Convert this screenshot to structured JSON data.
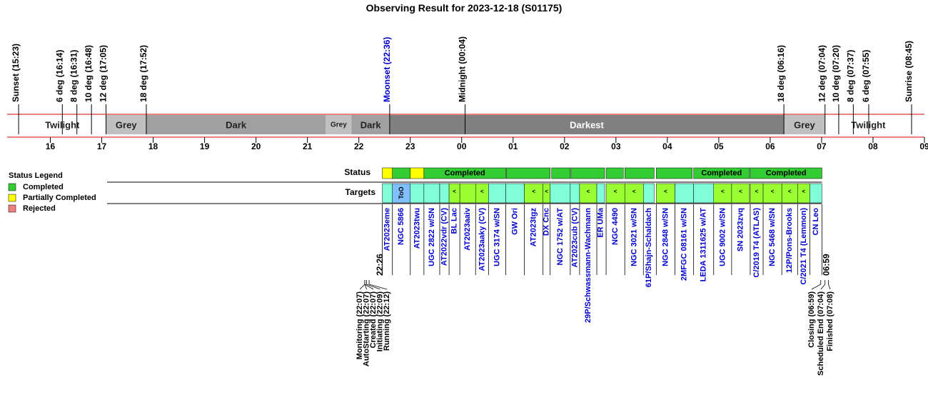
{
  "title": "Observing Result for 2023-12-18 (S01175)",
  "axis": {
    "lim": [
      15.16,
      33.0
    ],
    "ticks": [
      16,
      17,
      18,
      19,
      20,
      21,
      22,
      23,
      {
        "value": 24,
        "label": "00"
      },
      {
        "value": 25,
        "label": "01"
      },
      {
        "value": 26,
        "label": "02"
      },
      {
        "value": 27,
        "label": "03"
      },
      {
        "value": 28,
        "label": "04"
      },
      {
        "value": 29,
        "label": "05"
      },
      {
        "value": 30,
        "label": "06"
      },
      {
        "value": 31,
        "label": "07"
      },
      {
        "value": 32,
        "label": "08"
      },
      {
        "value": 33,
        "label": "09"
      }
    ]
  },
  "events": [
    {
      "label": "Sunset (15:23)"
    },
    {
      "label": "6 deg (16:14)"
    },
    {
      "label": "8 deg (16:31)"
    },
    {
      "label": "10 deg (16:48)"
    },
    {
      "label": "12 deg (17:05)"
    },
    {
      "label": "18 deg (17:52)"
    },
    {
      "label": "Moonset (22:36)",
      "color": "#0000cc"
    },
    {
      "label": "Midnight (00:04)"
    },
    {
      "label": "18 deg (06:16)"
    },
    {
      "label": "12 deg (07:04)"
    },
    {
      "label": "10 deg (07:20)"
    },
    {
      "label": "8 deg (07:37)"
    },
    {
      "label": "6 deg (07:55)"
    },
    {
      "label": "Sunrise (08:45)"
    }
  ],
  "bands": [
    {
      "label": "Twilight",
      "start": 15.383,
      "end": 17.083,
      "color": "#ffffff"
    },
    {
      "label": "Grey",
      "start": 17.083,
      "end": 17.867,
      "color": "#c0c0c0"
    },
    {
      "label": "Dark",
      "start": 17.867,
      "end": 21.356,
      "color": "#a0a0a0"
    },
    {
      "label": "Grey",
      "start": 21.356,
      "end": 21.858,
      "color": "#c0c0c0"
    },
    {
      "label": "Dark",
      "start": 21.858,
      "end": 22.6,
      "color": "#a0a0a0"
    },
    {
      "label": "Darkest",
      "start": 22.6,
      "end": 30.267,
      "color": "#808080",
      "text_color": "#ffffff"
    },
    {
      "label": "Grey",
      "start": 30.267,
      "end": 31.067,
      "color": "#c0c0c0"
    },
    {
      "label": "Twilight",
      "start": 31.067,
      "end": 32.75,
      "color": "#ffffff"
    }
  ],
  "status_legend": {
    "title": "Status Legend",
    "items": [
      {
        "label": "Completed",
        "color": "#33cc33"
      },
      {
        "label": "Partially Completed",
        "color": "#ffff00"
      },
      {
        "label": "Rejected",
        "color": "#f08080"
      }
    ]
  },
  "status": {
    "label": "Status",
    "segments": [
      {
        "start": 22.457,
        "end": 22.653,
        "status": 1
      },
      {
        "start": 22.653,
        "end": 23.001,
        "status": 0
      },
      {
        "start": 23.001,
        "end": 23.266,
        "status": 1
      },
      {
        "start": 23.266,
        "end": 24.857,
        "status": 0,
        "label": "Completed"
      },
      {
        "start": 24.87,
        "end": 25.721,
        "status": 0
      },
      {
        "start": 25.749,
        "end": 26.112,
        "status": 0
      },
      {
        "start": 26.126,
        "end": 26.781,
        "status": 0
      },
      {
        "start": 26.809,
        "end": 27.144,
        "status": 0
      },
      {
        "start": 27.172,
        "end": 27.743,
        "status": 0
      },
      {
        "start": 27.785,
        "end": 28.483,
        "status": 0
      },
      {
        "start": 28.511,
        "end": 29.598,
        "status": 0,
        "label": "Completed"
      },
      {
        "start": 29.612,
        "end": 31.007,
        "status": 0,
        "label": "Completed"
      }
    ]
  },
  "targets": {
    "label": "Targets",
    "items": [
      {
        "name": "AT2023eme",
        "start": 22.457,
        "end": 22.653,
        "color": "#80ffd8"
      },
      {
        "name": "NGC 5866",
        "start": 22.653,
        "end": 23.001,
        "color": "#80c0ff",
        "mark": "ToO"
      },
      {
        "name": "AT2023twu",
        "start": 23.001,
        "end": 23.266,
        "color": "#80ffd8"
      },
      {
        "name": "UGC 2822 w/SN",
        "start": 23.266,
        "end": 23.573,
        "color": "#80ffd8"
      },
      {
        "name": "AT2022vdr (CV)",
        "start": 23.573,
        "end": 23.755,
        "color": "#80ffd8"
      },
      {
        "name": "BL Lac",
        "start": 23.755,
        "end": 23.964,
        "color": "#99ff33",
        "mark": "<"
      },
      {
        "name": "AT2023aaiv",
        "start": 23.964,
        "end": 24.271,
        "color": "#99ff33"
      },
      {
        "name": "AT2023aaky (CV)",
        "start": 24.271,
        "end": 24.522,
        "color": "#99ff33",
        "mark": "<"
      },
      {
        "name": "UGC 3174 w/SN",
        "start": 24.522,
        "end": 24.857,
        "color": "#80ffd8"
      },
      {
        "name": "GW Ori",
        "start": 24.857,
        "end": 25.22,
        "color": "#80ffd8"
      },
      {
        "name": "AT2023tgz",
        "start": 25.22,
        "end": 25.582,
        "color": "#99ff33",
        "mark": "<"
      },
      {
        "name": "DX Cnc",
        "start": 25.582,
        "end": 25.721,
        "color": "#99ff33",
        "mark": "<"
      },
      {
        "name": "NGC 1752 w/AT",
        "start": 25.721,
        "end": 26.112,
        "color": "#80ffd8"
      },
      {
        "name": "AT2023cub (CV)",
        "start": 26.112,
        "end": 26.293,
        "color": "#80ffd8"
      },
      {
        "name": "29P/Schwassmann-Wachmann",
        "start": 26.293,
        "end": 26.628,
        "color": "#99ff33",
        "mark": "<"
      },
      {
        "name": "ER UMa",
        "start": 26.628,
        "end": 26.781,
        "color": "#80ffd8"
      },
      {
        "name": "NGC 4490",
        "start": 26.809,
        "end": 27.172,
        "color": "#99ff33",
        "mark": "<"
      },
      {
        "name": "NGC 3021 w/SN",
        "start": 27.172,
        "end": 27.534,
        "color": "#99ff33",
        "mark": "<"
      },
      {
        "name": "61P/Shajn-Schaldach",
        "start": 27.534,
        "end": 27.743,
        "color": "#80ffd8"
      },
      {
        "name": "NGC 2848 w/SN",
        "start": 27.785,
        "end": 28.148,
        "color": "#99ff33",
        "mark": "<"
      },
      {
        "name": "2MFGC 08161 w/SN",
        "start": 28.148,
        "end": 28.511,
        "color": "#80ffd8"
      },
      {
        "name": "LEDA 1311625 w/AT",
        "start": 28.511,
        "end": 28.901,
        "color": "#80ffd8"
      },
      {
        "name": "UGC 9002 w/SN",
        "start": 28.901,
        "end": 29.25,
        "color": "#99ff33",
        "mark": "<"
      },
      {
        "name": "SN 2023zvq",
        "start": 29.25,
        "end": 29.598,
        "color": "#99ff33",
        "mark": "<"
      },
      {
        "name": "C/2019 T4 (ATLAS)",
        "start": 29.612,
        "end": 29.863,
        "color": "#99ff33",
        "mark": "<"
      },
      {
        "name": "NGC 5468 w/SN",
        "start": 29.863,
        "end": 30.226,
        "color": "#99ff33",
        "mark": "<"
      },
      {
        "name": "12P/Pons-Brooks",
        "start": 30.226,
        "end": 30.533,
        "color": "#99ff33",
        "mark": "<"
      },
      {
        "name": "C/2021 T4 (Lemmon)",
        "start": 30.533,
        "end": 30.77,
        "color": "#99ff33",
        "mark": "<"
      },
      {
        "name": "CN Leo",
        "start": 30.77,
        "end": 31.007,
        "color": "#80ffd8"
      }
    ]
  },
  "run": {
    "start": "22:26",
    "end": "06:59"
  },
  "start_log": [
    "Monitoring (22:07)",
    "AutoStarting (22:07)",
    "Created (22:07)",
    "Initiating (22:09)",
    "Running (22:12)"
  ],
  "end_log": [
    "Closing (06:59)",
    "Scheduled End (07:04)",
    "Finished (07:08)"
  ]
}
